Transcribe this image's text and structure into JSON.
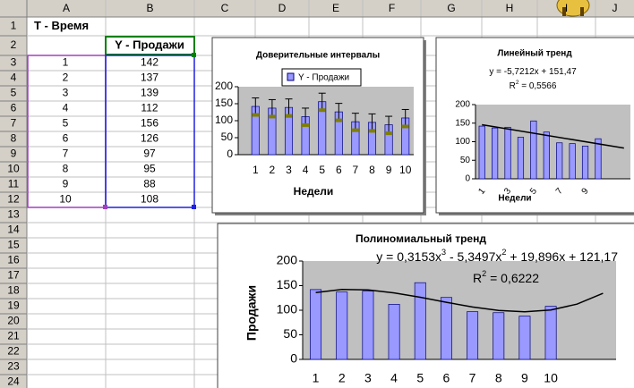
{
  "columns": [
    "A",
    "B",
    "C",
    "D",
    "E",
    "F",
    "G",
    "H",
    "I",
    "J"
  ],
  "row_numbers": [
    1,
    2,
    3,
    4,
    5,
    6,
    7,
    8,
    9,
    10,
    11,
    12,
    13,
    14,
    15,
    16,
    17,
    18,
    19,
    20,
    21,
    22,
    23,
    24
  ],
  "cells": {
    "A1": "T - Время",
    "B2": "Y - Продажи"
  },
  "table": {
    "rows": [
      [
        1,
        142
      ],
      [
        2,
        137
      ],
      [
        3,
        139
      ],
      [
        4,
        112
      ],
      [
        5,
        156
      ],
      [
        6,
        126
      ],
      [
        7,
        97
      ],
      [
        8,
        95
      ],
      [
        9,
        88
      ],
      [
        10,
        108
      ]
    ]
  },
  "charts": [
    {
      "type": "bar",
      "title": "Доверительные интервалы",
      "legend": "Y - Продажи",
      "xlabel": "Недели",
      "ylim": [
        0,
        200
      ],
      "yticks": [
        0,
        50,
        100,
        150,
        200
      ],
      "error": 25,
      "color": "#9999ff"
    },
    {
      "type": "bar",
      "title": "Линейный тренд",
      "equation": [
        "y = -5,7212x + 151,47"
      ],
      "r2": [
        "R",
        "2",
        " = 0,5566"
      ],
      "xlabel": "Недели",
      "ylim": [
        0,
        200
      ],
      "yticks": [
        0,
        50,
        100,
        150,
        200
      ],
      "trend": [
        145.7,
        82.8
      ],
      "color": "#9999ff"
    },
    {
      "type": "bar",
      "title": "Полиномиальный тренд",
      "equation": [
        "y = 0,3153x",
        "3",
        " - 5,3497x",
        "2",
        " + 19,896x + 121,17"
      ],
      "r2": [
        "R",
        "2",
        " = 0,6222"
      ],
      "ylabel": "Продажи",
      "ylim": [
        0,
        200
      ],
      "yticks": [
        0,
        50,
        100,
        150,
        200
      ],
      "trend": [
        136.0,
        142.1,
        141.2,
        135.3,
        126.3,
        116.1,
        106.5,
        99.4,
        96.8,
        100.5,
        112.4,
        134.4
      ],
      "color": "#9999ff"
    }
  ]
}
